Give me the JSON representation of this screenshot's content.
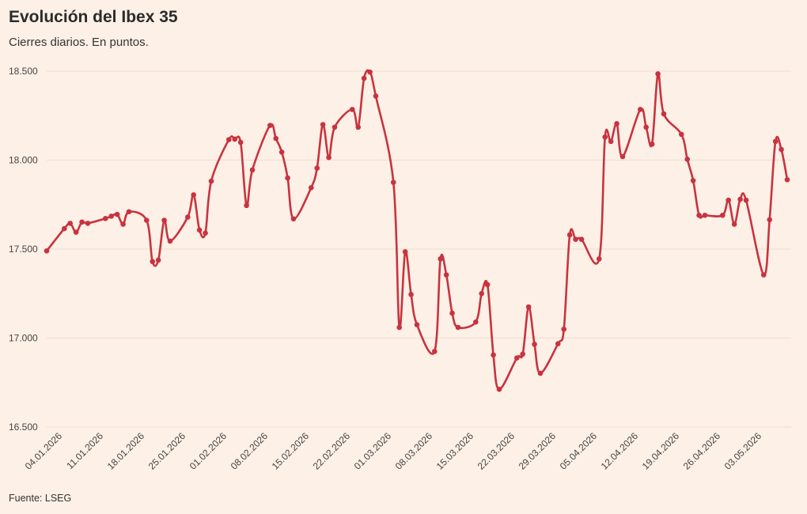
{
  "title": "Evolución del Ibex 35",
  "subtitle": "Cierres diarios. En puntos.",
  "source": "Fuente: LSEG",
  "colors": {
    "line": "#c8333f",
    "background": "#fdf0e6",
    "grid": "#f3dccd"
  },
  "chart_data": {
    "type": "line",
    "title": "Evolución del Ibex 35",
    "subtitle": "Cierres diarios. En puntos.",
    "xlabel": "",
    "ylabel": "",
    "ylim": [
      16500,
      18500
    ],
    "yticks": [
      16500,
      17000,
      17500,
      18000,
      18500
    ],
    "ytick_labels": [
      "16.500",
      "17.000",
      "17.500",
      "18.000",
      "18.500"
    ],
    "xlim": [
      "2026-01-04",
      "2026-05-10"
    ],
    "xtick_labels": [
      "04.01.2026",
      "11.01.2026",
      "18.01.2026",
      "25.01.2026",
      "01.02.2026",
      "08.02.2026",
      "15.02.2026",
      "22.02.2026",
      "01.03.2026",
      "08.03.2026",
      "15.03.2026",
      "22.03.2026",
      "29.03.2026",
      "05.04.2026",
      "12.04.2026",
      "19.04.2026",
      "26.04.2026",
      "03.05.2026"
    ],
    "grid": "horizontal",
    "series": [
      {
        "points": [
          [
            "2026-01-04",
            17490
          ],
          [
            "2026-01-07",
            17615
          ],
          [
            "2026-01-08",
            17645
          ],
          [
            "2026-01-09",
            17595
          ],
          [
            "2026-01-10",
            17652
          ],
          [
            "2026-01-11",
            17645
          ],
          [
            "2026-01-14",
            17672
          ],
          [
            "2026-01-15",
            17685
          ],
          [
            "2026-01-16",
            17695
          ],
          [
            "2026-01-17",
            17640
          ],
          [
            "2026-01-18",
            17710
          ],
          [
            "2026-01-21",
            17662
          ],
          [
            "2026-01-22",
            17430
          ],
          [
            "2026-01-23",
            17438
          ],
          [
            "2026-01-24",
            17662
          ],
          [
            "2026-01-25",
            17545
          ],
          [
            "2026-01-28",
            17680
          ],
          [
            "2026-01-29",
            17805
          ],
          [
            "2026-01-30",
            17607
          ],
          [
            "2026-01-31",
            17590
          ],
          [
            "2026-02-01",
            17882
          ],
          [
            "2026-02-04",
            18115
          ],
          [
            "2026-02-05",
            18118
          ],
          [
            "2026-02-06",
            18100
          ],
          [
            "2026-02-07",
            17745
          ],
          [
            "2026-02-08",
            17945
          ],
          [
            "2026-02-11",
            18195
          ],
          [
            "2026-02-12",
            18122
          ],
          [
            "2026-02-13",
            18045
          ],
          [
            "2026-02-14",
            17900
          ],
          [
            "2026-02-15",
            17670
          ],
          [
            "2026-02-18",
            17845
          ],
          [
            "2026-02-19",
            17955
          ],
          [
            "2026-02-20",
            18200
          ],
          [
            "2026-02-21",
            18015
          ],
          [
            "2026-02-22",
            18185
          ],
          [
            "2026-02-25",
            18285
          ],
          [
            "2026-02-26",
            18185
          ],
          [
            "2026-02-27",
            18460
          ],
          [
            "2026-02-28",
            18495
          ],
          [
            "2026-03-01",
            18360
          ],
          [
            "2026-03-04",
            17875
          ],
          [
            "2026-03-05",
            17060
          ],
          [
            "2026-03-06",
            17485
          ],
          [
            "2026-03-07",
            17245
          ],
          [
            "2026-03-08",
            17075
          ],
          [
            "2026-03-11",
            16925
          ],
          [
            "2026-03-12",
            17445
          ],
          [
            "2026-03-13",
            17355
          ],
          [
            "2026-03-14",
            17140
          ],
          [
            "2026-03-15",
            17060
          ],
          [
            "2026-03-18",
            17090
          ],
          [
            "2026-03-19",
            17250
          ],
          [
            "2026-03-20",
            17300
          ],
          [
            "2026-03-21",
            16905
          ],
          [
            "2026-03-22",
            16712
          ],
          [
            "2026-03-25",
            16888
          ],
          [
            "2026-03-26",
            16910
          ],
          [
            "2026-03-27",
            17175
          ],
          [
            "2026-03-28",
            16965
          ],
          [
            "2026-03-29",
            16802
          ],
          [
            "2026-04-01",
            16968
          ],
          [
            "2026-04-02",
            17050
          ],
          [
            "2026-04-03",
            17580
          ],
          [
            "2026-04-04",
            17555
          ],
          [
            "2026-04-05",
            17555
          ],
          [
            "2026-04-08",
            17445
          ],
          [
            "2026-04-09",
            18130
          ],
          [
            "2026-04-10",
            18105
          ],
          [
            "2026-04-11",
            18205
          ],
          [
            "2026-04-12",
            18020
          ],
          [
            "2026-04-15",
            18285
          ],
          [
            "2026-04-16",
            18185
          ],
          [
            "2026-04-17",
            18090
          ],
          [
            "2026-04-18",
            18485
          ],
          [
            "2026-04-19",
            18260
          ],
          [
            "2026-04-22",
            18145
          ],
          [
            "2026-04-23",
            18005
          ],
          [
            "2026-04-24",
            17885
          ],
          [
            "2026-04-25",
            17690
          ],
          [
            "2026-04-26",
            17690
          ],
          [
            "2026-04-29",
            17690
          ],
          [
            "2026-04-30",
            17775
          ],
          [
            "2026-05-01",
            17640
          ],
          [
            "2026-05-02",
            17780
          ],
          [
            "2026-05-03",
            17775
          ],
          [
            "2026-05-06",
            17355
          ],
          [
            "2026-05-07",
            17665
          ],
          [
            "2026-05-08",
            18105
          ],
          [
            "2026-05-09",
            18060
          ],
          [
            "2026-05-10",
            17890
          ]
        ]
      }
    ]
  }
}
